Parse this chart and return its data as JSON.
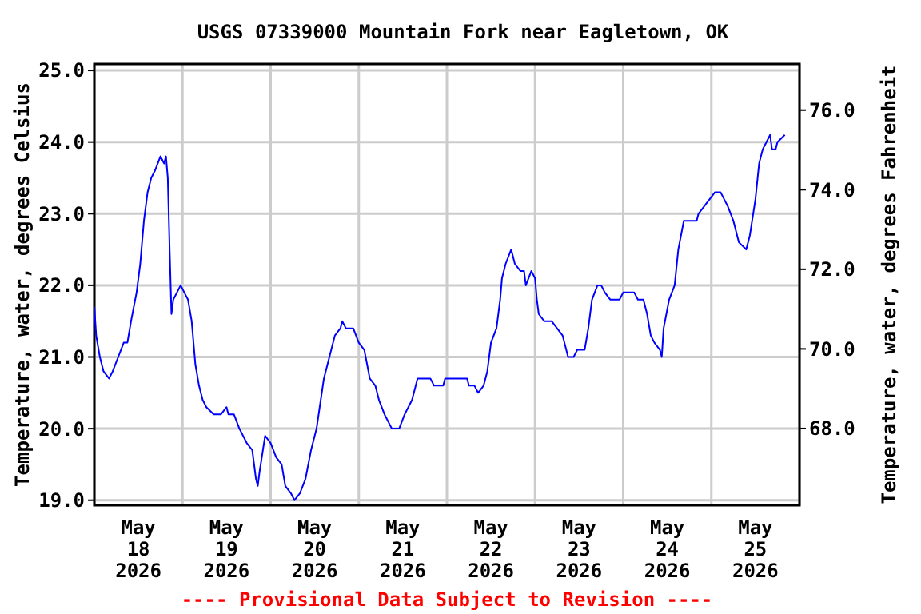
{
  "chart_data": {
    "type": "line",
    "title": "USGS 07339000 Mountain Fork near Eagletown, OK",
    "ylabel": "Temperature, water, degrees Celsius",
    "y2label": "Temperature, water, degrees Fahrenheit",
    "annotations": [
      "---- Provisional Data Subject to Revision ----"
    ],
    "xlim": [
      "2026-05-18T00:00",
      "2026-05-26T00:00"
    ],
    "xticks": [
      {
        "value": "2026-05-18T00:00",
        "label": null
      },
      {
        "value": "2026-05-18T12:00",
        "label": "May\n18\n2026"
      },
      {
        "value": "2026-05-19T00:00",
        "label": null
      },
      {
        "value": "2026-05-19T12:00",
        "label": "May\n19\n2026"
      },
      {
        "value": "2026-05-20T00:00",
        "label": null
      },
      {
        "value": "2026-05-20T12:00",
        "label": "May\n20\n2026"
      },
      {
        "value": "2026-05-21T00:00",
        "label": null
      },
      {
        "value": "2026-05-21T12:00",
        "label": "May\n21\n2026"
      },
      {
        "value": "2026-05-22T00:00",
        "label": null
      },
      {
        "value": "2026-05-22T12:00",
        "label": "May\n22\n2026"
      },
      {
        "value": "2026-05-23T00:00",
        "label": null
      },
      {
        "value": "2026-05-23T12:00",
        "label": "May\n23\n2026"
      },
      {
        "value": "2026-05-24T00:00",
        "label": null
      },
      {
        "value": "2026-05-24T12:00",
        "label": "May\n24\n2026"
      },
      {
        "value": "2026-05-25T00:00",
        "label": null
      },
      {
        "value": "2026-05-25T12:00",
        "label": "May\n25\n2026"
      },
      {
        "value": "2026-05-26T00:00",
        "label": null
      }
    ],
    "ylim": [
      18.93,
      25.09
    ],
    "yticks": [
      {
        "value": 19,
        "label": "19.0"
      },
      {
        "value": 20,
        "label": "20.0"
      },
      {
        "value": 21,
        "label": "21.0"
      },
      {
        "value": 22,
        "label": "22.0"
      },
      {
        "value": 23,
        "label": "23.0"
      },
      {
        "value": 24,
        "label": "24.0"
      },
      {
        "value": 25,
        "label": "25.0"
      }
    ],
    "y2lim": [
      66.07,
      77.16
    ],
    "y2ticks": [
      {
        "value": 68,
        "label": "68.0"
      },
      {
        "value": 70,
        "label": "70.0"
      },
      {
        "value": 72,
        "label": "72.0"
      },
      {
        "value": 74,
        "label": "74.0"
      },
      {
        "value": 76,
        "label": "76.0"
      }
    ],
    "grid": true,
    "series": [
      {
        "color": "#0000ff",
        "x": [
          "2026-05-18T00:00",
          "2026-05-18T00:30",
          "2026-05-18T01:30",
          "2026-05-18T02:30",
          "2026-05-18T04:00",
          "2026-05-18T05:00",
          "2026-05-18T06:30",
          "2026-05-18T08:00",
          "2026-05-18T09:00",
          "2026-05-18T10:00",
          "2026-05-18T11:30",
          "2026-05-18T12:30",
          "2026-05-18T13:30",
          "2026-05-18T14:30",
          "2026-05-18T15:30",
          "2026-05-18T16:30",
          "2026-05-18T18:00",
          "2026-05-18T19:00",
          "2026-05-18T19:30",
          "2026-05-18T20:00",
          "2026-05-18T20:30",
          "2026-05-18T21:00",
          "2026-05-18T21:30",
          "2026-05-18T23:30",
          "2026-05-19T00:30",
          "2026-05-19T01:30",
          "2026-05-19T02:30",
          "2026-05-19T03:30",
          "2026-05-19T04:30",
          "2026-05-19T05:30",
          "2026-05-19T06:30",
          "2026-05-19T08:30",
          "2026-05-19T10:30",
          "2026-05-19T12:00",
          "2026-05-19T12:30",
          "2026-05-19T14:00",
          "2026-05-19T15:30",
          "2026-05-19T17:30",
          "2026-05-19T19:00",
          "2026-05-19T20:00",
          "2026-05-19T20:30",
          "2026-05-19T21:00",
          "2026-05-19T22:30",
          "2026-05-20T00:00",
          "2026-05-20T01:30",
          "2026-05-20T03:00",
          "2026-05-20T04:00",
          "2026-05-20T05:30",
          "2026-05-20T06:30",
          "2026-05-20T08:00",
          "2026-05-20T09:30",
          "2026-05-20T11:00",
          "2026-05-20T12:30",
          "2026-05-20T14:30",
          "2026-05-20T16:00",
          "2026-05-20T17:30",
          "2026-05-20T19:00",
          "2026-05-20T19:30",
          "2026-05-20T20:30",
          "2026-05-20T22:30",
          "2026-05-21T00:00",
          "2026-05-21T01:30",
          "2026-05-21T03:00",
          "2026-05-21T04:30",
          "2026-05-21T05:30",
          "2026-05-21T07:00",
          "2026-05-21T09:00",
          "2026-05-21T11:00",
          "2026-05-21T12:30",
          "2026-05-21T14:30",
          "2026-05-21T16:00",
          "2026-05-21T19:30",
          "2026-05-21T20:30",
          "2026-05-21T23:00",
          "2026-05-21T23:30",
          "2026-05-22T05:30",
          "2026-05-22T06:00",
          "2026-05-22T07:30",
          "2026-05-22T08:30",
          "2026-05-22T10:00",
          "2026-05-22T11:00",
          "2026-05-22T12:00",
          "2026-05-22T13:30",
          "2026-05-22T14:30",
          "2026-05-22T15:00",
          "2026-05-22T16:00",
          "2026-05-22T17:30",
          "2026-05-22T18:30",
          "2026-05-22T20:00",
          "2026-05-22T21:00",
          "2026-05-22T21:30",
          "2026-05-22T23:00",
          "2026-05-23T00:00",
          "2026-05-23T00:30",
          "2026-05-23T01:00",
          "2026-05-23T02:30",
          "2026-05-23T04:30",
          "2026-05-23T06:00",
          "2026-05-23T07:30",
          "2026-05-23T09:00",
          "2026-05-23T10:30",
          "2026-05-23T11:30",
          "2026-05-23T13:30",
          "2026-05-23T14:30",
          "2026-05-23T15:30",
          "2026-05-23T17:00",
          "2026-05-23T18:00",
          "2026-05-23T19:00",
          "2026-05-23T20:30",
          "2026-05-23T23:00",
          "2026-05-24T00:00",
          "2026-05-24T03:00",
          "2026-05-24T04:00",
          "2026-05-24T05:30",
          "2026-05-24T06:30",
          "2026-05-24T07:30",
          "2026-05-24T08:30",
          "2026-05-24T10:00",
          "2026-05-24T10:30",
          "2026-05-24T11:00",
          "2026-05-24T12:30",
          "2026-05-24T14:00",
          "2026-05-24T15:00",
          "2026-05-24T16:30",
          "2026-05-24T20:00",
          "2026-05-24T20:30",
          "2026-05-24T22:00",
          "2026-05-24T23:30",
          "2026-05-25T01:00",
          "2026-05-25T02:30",
          "2026-05-25T03:30",
          "2026-05-25T04:30",
          "2026-05-25T06:00",
          "2026-05-25T07:30",
          "2026-05-25T09:30",
          "2026-05-25T10:30",
          "2026-05-25T12:00",
          "2026-05-25T13:00",
          "2026-05-25T14:00",
          "2026-05-25T15:00",
          "2026-05-25T16:00",
          "2026-05-25T16:30",
          "2026-05-25T17:30",
          "2026-05-25T18:00",
          "2026-05-25T20:00"
        ],
        "values": [
          21.7,
          21.3,
          21.0,
          20.8,
          20.7,
          20.8,
          21.0,
          21.2,
          21.2,
          21.5,
          21.9,
          22.3,
          22.9,
          23.3,
          23.5,
          23.6,
          23.8,
          23.7,
          23.8,
          23.5,
          22.5,
          21.6,
          21.8,
          22.0,
          21.9,
          21.8,
          21.5,
          20.9,
          20.6,
          20.4,
          20.3,
          20.2,
          20.2,
          20.3,
          20.2,
          20.2,
          20.0,
          19.8,
          19.7,
          19.3,
          19.2,
          19.4,
          19.9,
          19.8,
          19.6,
          19.5,
          19.2,
          19.1,
          19.0,
          19.1,
          19.3,
          19.7,
          20.0,
          20.7,
          21.0,
          21.3,
          21.4,
          21.5,
          21.4,
          21.4,
          21.2,
          21.1,
          20.7,
          20.6,
          20.4,
          20.2,
          20.0,
          20.0,
          20.2,
          20.4,
          20.7,
          20.7,
          20.6,
          20.6,
          20.7,
          20.7,
          20.6,
          20.6,
          20.5,
          20.6,
          20.8,
          21.2,
          21.4,
          21.8,
          22.1,
          22.3,
          22.5,
          22.3,
          22.2,
          22.2,
          22.0,
          22.2,
          22.1,
          21.8,
          21.6,
          21.5,
          21.5,
          21.4,
          21.3,
          21.0,
          21.0,
          21.1,
          21.1,
          21.4,
          21.8,
          22.0,
          22.0,
          21.9,
          21.8,
          21.8,
          21.9,
          21.9,
          21.8,
          21.8,
          21.6,
          21.3,
          21.2,
          21.1,
          21.0,
          21.4,
          21.8,
          22.0,
          22.5,
          22.9,
          22.9,
          23.0,
          23.1,
          23.2,
          23.3,
          23.3,
          23.2,
          23.1,
          22.9,
          22.6,
          22.5,
          22.7,
          23.2,
          23.7,
          23.9,
          24.0,
          24.1,
          23.9,
          23.9,
          24.0,
          24.1
        ]
      }
    ]
  }
}
